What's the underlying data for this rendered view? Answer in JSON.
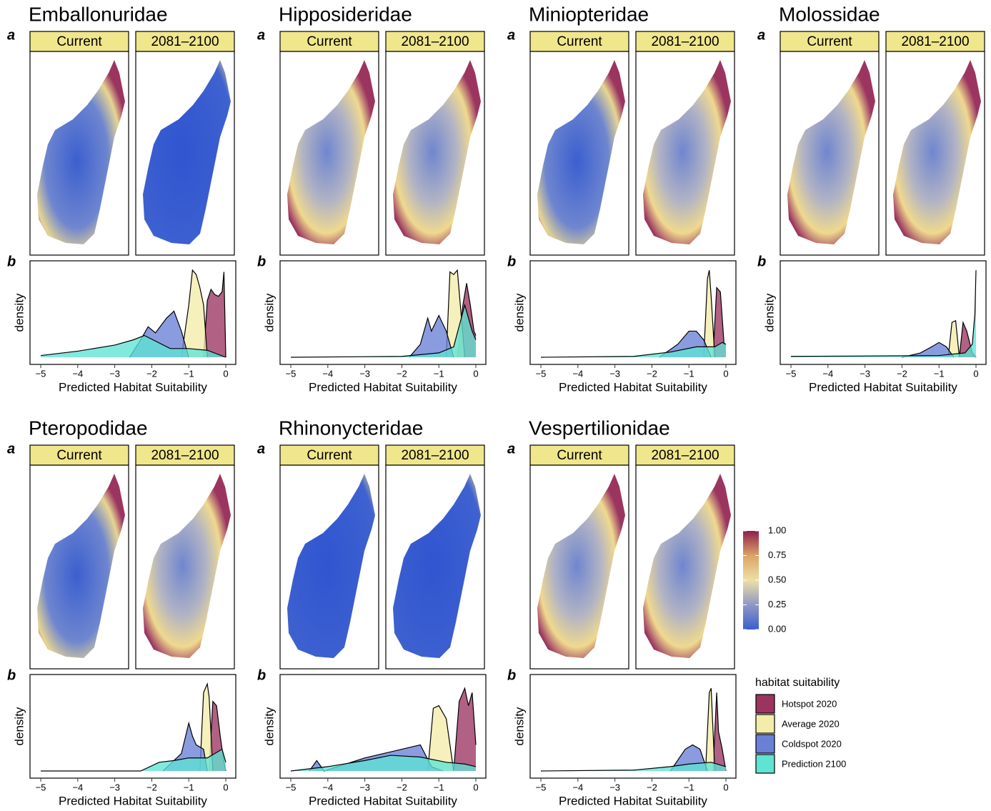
{
  "chart_data": [
    {
      "type": "density",
      "title": "Emballonuridae",
      "facets": [
        "Current",
        "2081–2100"
      ],
      "panel_labels": [
        "a",
        "b"
      ],
      "ylabel": "density",
      "xlabel": "Predicted Habitat Suitability",
      "xlim": [
        -5.29,
        0.27
      ],
      "ylim": [
        0,
        1.05
      ],
      "xticks": [
        {
          "value": -5,
          "label": "−5"
        },
        {
          "value": -4,
          "label": "−4"
        },
        {
          "value": -3,
          "label": "−3"
        },
        {
          "value": -2,
          "label": "−2"
        },
        {
          "value": -1,
          "label": "−1"
        },
        0
      ],
      "series": [
        {
          "name": "Hotspot 2020",
          "color": "#9b3560",
          "x": [
            -0.6,
            -0.5,
            -0.4,
            -0.3,
            -0.2,
            -0.1,
            -0.05,
            0
          ],
          "values": [
            0,
            0.65,
            0.78,
            0.72,
            0.7,
            0.75,
            0.98,
            0
          ]
        },
        {
          "name": "Average 2020",
          "color": "#f3ecaa",
          "x": [
            -1.2,
            -1.0,
            -0.9,
            -0.8,
            -0.7,
            -0.6,
            -0.5
          ],
          "values": [
            0,
            0.6,
            1.0,
            0.95,
            0.8,
            0.6,
            0
          ]
        },
        {
          "name": "Coldspot 2020",
          "color": "#6a7fd6",
          "x": [
            -2.6,
            -2.3,
            -2.1,
            -1.9,
            -1.6,
            -1.4,
            -1.2,
            -1.0
          ],
          "values": [
            0,
            0.2,
            0.35,
            0.28,
            0.45,
            0.53,
            0.3,
            0
          ]
        },
        {
          "name": "Prediction 2100",
          "color": "#5fe3d3",
          "x": [
            -5,
            -4,
            -3,
            -2.5,
            -2.2,
            -1.5,
            -1,
            -0.5,
            0
          ],
          "values": [
            0.02,
            0.07,
            0.14,
            0.2,
            0.25,
            0.1,
            0.1,
            0.08,
            0
          ]
        }
      ]
    },
    {
      "type": "density",
      "title": "Hipposideridae",
      "facets": [
        "Current",
        "2081–2100"
      ],
      "panel_labels": [
        "a",
        "b"
      ],
      "ylabel": "density",
      "xlabel": "Predicted Habitat Suitability",
      "xlim": [
        -5.29,
        0.27
      ],
      "ylim": [
        0,
        1.05
      ],
      "xticks": [
        {
          "value": -5,
          "label": "−5"
        },
        {
          "value": -4,
          "label": "−4"
        },
        {
          "value": -3,
          "label": "−3"
        },
        {
          "value": -2,
          "label": "−2"
        },
        {
          "value": -1,
          "label": "−1"
        },
        0
      ],
      "series": [
        {
          "name": "Hotspot 2020",
          "color": "#9b3560",
          "x": [
            -0.5,
            -0.35,
            -0.25,
            -0.15,
            -0.05,
            0
          ],
          "values": [
            0,
            0.6,
            0.85,
            0.6,
            0.3,
            0.25
          ]
        },
        {
          "name": "Average 2020",
          "color": "#f3ecaa",
          "x": [
            -0.8,
            -0.7,
            -0.6,
            -0.5,
            -0.4,
            -0.3
          ],
          "values": [
            0,
            0.98,
            0.95,
            1.0,
            0.5,
            0
          ]
        },
        {
          "name": "Coldspot 2020",
          "color": "#6a7fd6",
          "x": [
            -1.8,
            -1.5,
            -1.3,
            -1.2,
            -1.0,
            -0.8,
            -0.6
          ],
          "values": [
            0,
            0.15,
            0.45,
            0.3,
            0.48,
            0.3,
            0
          ]
        },
        {
          "name": "Prediction 2100",
          "color": "#5fe3d3",
          "x": [
            -5,
            -2,
            -1,
            -0.6,
            -0.3,
            -0.1,
            0
          ],
          "values": [
            0,
            0.01,
            0.05,
            0.12,
            0.6,
            0.3,
            0.2
          ]
        }
      ]
    },
    {
      "type": "density",
      "title": "Miniopteridae",
      "facets": [
        "Current",
        "2081–2100"
      ],
      "panel_labels": [
        "a",
        "b"
      ],
      "ylabel": "density",
      "xlabel": "Predicted Habitat Suitability",
      "xlim": [
        -5.29,
        0.27
      ],
      "ylim": [
        0,
        1.05
      ],
      "xticks": [
        {
          "value": -5,
          "label": "−5"
        },
        {
          "value": -4,
          "label": "−4"
        },
        {
          "value": -3,
          "label": "−3"
        },
        {
          "value": -2,
          "label": "−2"
        },
        {
          "value": -1,
          "label": "−1"
        },
        0
      ],
      "series": [
        {
          "name": "Hotspot 2020",
          "color": "#9b3560",
          "x": [
            -0.35,
            -0.25,
            -0.15,
            -0.05,
            0
          ],
          "values": [
            0,
            0.8,
            0.75,
            0.15,
            0.15
          ]
        },
        {
          "name": "Average 2020",
          "color": "#f3ecaa",
          "x": [
            -0.6,
            -0.5,
            -0.45,
            -0.4,
            -0.3
          ],
          "values": [
            0,
            0.9,
            1.0,
            0.7,
            0
          ]
        },
        {
          "name": "Coldspot 2020",
          "color": "#6a7fd6",
          "x": [
            -1.8,
            -1.3,
            -1.0,
            -0.8,
            -0.6,
            -0.4
          ],
          "values": [
            0,
            0.15,
            0.3,
            0.3,
            0.2,
            0
          ]
        },
        {
          "name": "Prediction 2100",
          "color": "#5fe3d3",
          "x": [
            -5,
            -2.5,
            -1.5,
            -0.8,
            -0.3,
            -0.1,
            0
          ],
          "values": [
            0,
            0.01,
            0.06,
            0.12,
            0.12,
            0.17,
            0.15
          ]
        }
      ]
    },
    {
      "type": "density",
      "title": "Molossidae",
      "facets": [
        "Current",
        "2081–2100"
      ],
      "panel_labels": [
        "a",
        "b"
      ],
      "ylabel": "density",
      "xlabel": "Predicted Habitat Suitability",
      "xlim": [
        -5.29,
        0.27
      ],
      "ylim": [
        0,
        1.05
      ],
      "xticks": [
        {
          "value": -5,
          "label": "−5"
        },
        {
          "value": -4,
          "label": "−4"
        },
        {
          "value": -3,
          "label": "−3"
        },
        {
          "value": -2,
          "label": "−2"
        },
        {
          "value": -1,
          "label": "−1"
        },
        0
      ],
      "series": [
        {
          "name": "Hotspot 2020",
          "color": "#9b3560",
          "x": [
            -0.45,
            -0.35,
            -0.25,
            -0.1,
            0
          ],
          "values": [
            0,
            0.4,
            0.3,
            0.05,
            0
          ]
        },
        {
          "name": "Average 2020",
          "color": "#f3ecaa",
          "x": [
            -0.75,
            -0.65,
            -0.55,
            -0.45
          ],
          "values": [
            0,
            0.4,
            0.42,
            0
          ]
        },
        {
          "name": "Coldspot 2020",
          "color": "#6a7fd6",
          "x": [
            -2,
            -1.5,
            -1.2,
            -1.0,
            -0.8,
            -0.6
          ],
          "values": [
            0,
            0.05,
            0.12,
            0.17,
            0.12,
            0
          ]
        },
        {
          "name": "Prediction 2100",
          "color": "#5fe3d3",
          "x": [
            -5,
            -1,
            -0.3,
            -0.1,
            -0.03,
            0
          ],
          "values": [
            0.01,
            0.02,
            0.05,
            0.15,
            0.5,
            1.0
          ]
        }
      ]
    },
    {
      "type": "density",
      "title": "Pteropodidae",
      "facets": [
        "Current",
        "2081–2100"
      ],
      "panel_labels": [
        "a",
        "b"
      ],
      "ylabel": "density",
      "xlabel": "Predicted Habitat Suitability",
      "xlim": [
        -5.29,
        0.27
      ],
      "ylim": [
        0,
        1.05
      ],
      "xticks": [
        {
          "value": -5,
          "label": "−5"
        },
        {
          "value": -4,
          "label": "−4"
        },
        {
          "value": -3,
          "label": "−3"
        },
        {
          "value": -2,
          "label": "−2"
        },
        {
          "value": -1,
          "label": "−1"
        },
        0
      ],
      "series": [
        {
          "name": "Hotspot 2020",
          "color": "#9b3560",
          "x": [
            -0.45,
            -0.35,
            -0.25,
            -0.15,
            -0.05,
            0
          ],
          "values": [
            0,
            0.8,
            0.75,
            0.4,
            0.1,
            0
          ]
        },
        {
          "name": "Average 2020",
          "color": "#f3ecaa",
          "x": [
            -0.7,
            -0.6,
            -0.5,
            -0.45,
            -0.35
          ],
          "values": [
            0,
            0.9,
            1.0,
            0.85,
            0
          ]
        },
        {
          "name": "Coldspot 2020",
          "color": "#6a7fd6",
          "x": [
            -1.7,
            -1.2,
            -1.0,
            -0.9,
            -0.8,
            -0.6,
            -0.5
          ],
          "values": [
            0,
            0.2,
            0.55,
            0.4,
            0.3,
            0.25,
            0
          ]
        },
        {
          "name": "Prediction 2100",
          "color": "#5fe3d3",
          "x": [
            -5,
            -2.3,
            -1.8,
            -1.4,
            -1,
            -0.5,
            -0.1,
            0
          ],
          "values": [
            0,
            0,
            0.1,
            0.12,
            0.15,
            0.15,
            0.25,
            0.1
          ]
        }
      ]
    },
    {
      "type": "density",
      "title": "Rhinonycteridae",
      "facets": [
        "Current",
        "2081–2100"
      ],
      "panel_labels": [
        "a",
        "b"
      ],
      "ylabel": "density",
      "xlabel": "Predicted Habitat Suitability",
      "xlim": [
        -5.29,
        0.27
      ],
      "ylim": [
        0,
        1.05
      ],
      "xticks": [
        {
          "value": -5,
          "label": "−5"
        },
        {
          "value": -4,
          "label": "−4"
        },
        {
          "value": -3,
          "label": "−3"
        },
        {
          "value": -2,
          "label": "−2"
        },
        {
          "value": -1,
          "label": "−1"
        },
        0
      ],
      "series": [
        {
          "name": "Hotspot 2020",
          "color": "#9b3560",
          "x": [
            -0.6,
            -0.45,
            -0.3,
            -0.2,
            -0.1,
            0
          ],
          "values": [
            0,
            0.8,
            0.95,
            0.75,
            0.9,
            0.3
          ]
        },
        {
          "name": "Average 2020",
          "color": "#f3ecaa",
          "x": [
            -1.3,
            -1.15,
            -1.0,
            -0.8,
            -0.6
          ],
          "values": [
            0,
            0.72,
            0.75,
            0.6,
            0
          ]
        },
        {
          "name": "Coldspot 2020",
          "color": "#6a7fd6",
          "x": [
            -4.5,
            -4.3,
            -4.1,
            -3,
            -2,
            -1.5,
            -1.2,
            -0.9
          ],
          "values": [
            0,
            0.12,
            0,
            0.15,
            0.25,
            0.3,
            0.05,
            0
          ]
        },
        {
          "name": "Prediction 2100",
          "color": "#5fe3d3",
          "x": [
            -5,
            -4,
            -3,
            -2.3,
            -1.5,
            -0.8,
            -0.3,
            0
          ],
          "values": [
            0,
            0.05,
            0.12,
            0.18,
            0.16,
            0.1,
            0.08,
            0.05
          ]
        }
      ]
    },
    {
      "type": "density",
      "title": "Vespertilionidae",
      "facets": [
        "Current",
        "2081–2100"
      ],
      "panel_labels": [
        "a",
        "b"
      ],
      "ylabel": "density",
      "xlabel": "Predicted Habitat Suitability",
      "xlim": [
        -5.29,
        0.27
      ],
      "ylim": [
        0,
        1.05
      ],
      "xticks": [
        {
          "value": -5,
          "label": "−5"
        },
        {
          "value": -4,
          "label": "−4"
        },
        {
          "value": -3,
          "label": "−3"
        },
        {
          "value": -2,
          "label": "−2"
        },
        {
          "value": -1,
          "label": "−1"
        },
        0
      ],
      "series": [
        {
          "name": "Hotspot 2020",
          "color": "#9b3560",
          "x": [
            -0.35,
            -0.25,
            -0.2,
            -0.1,
            0
          ],
          "values": [
            0,
            0.9,
            0.45,
            0.25,
            0
          ]
        },
        {
          "name": "Average 2020",
          "color": "#f3ecaa",
          "x": [
            -0.55,
            -0.45,
            -0.4,
            -0.3
          ],
          "values": [
            0,
            0.9,
            0.95,
            0
          ]
        },
        {
          "name": "Coldspot 2020",
          "color": "#6a7fd6",
          "x": [
            -1.5,
            -1.1,
            -0.9,
            -0.7,
            -0.5
          ],
          "values": [
            0,
            0.25,
            0.3,
            0.25,
            0
          ]
        },
        {
          "name": "Prediction 2100",
          "color": "#5fe3d3",
          "x": [
            -5,
            -2.5,
            -1.5,
            -1,
            -0.4,
            0
          ],
          "values": [
            0,
            0.01,
            0.05,
            0.08,
            0.1,
            0.05
          ]
        }
      ]
    }
  ],
  "legend": {
    "title": "habitat suitability"
  },
  "colorbar": {
    "lim": [
      0,
      1
    ],
    "ticks": [
      {
        "value": 0,
        "label": "0.00"
      },
      {
        "value": 0.25,
        "label": "0.25"
      },
      {
        "value": 0.5,
        "label": "0.50"
      },
      {
        "value": 0.75,
        "label": "0.75"
      },
      {
        "value": 1,
        "label": "1.00"
      }
    ]
  }
}
